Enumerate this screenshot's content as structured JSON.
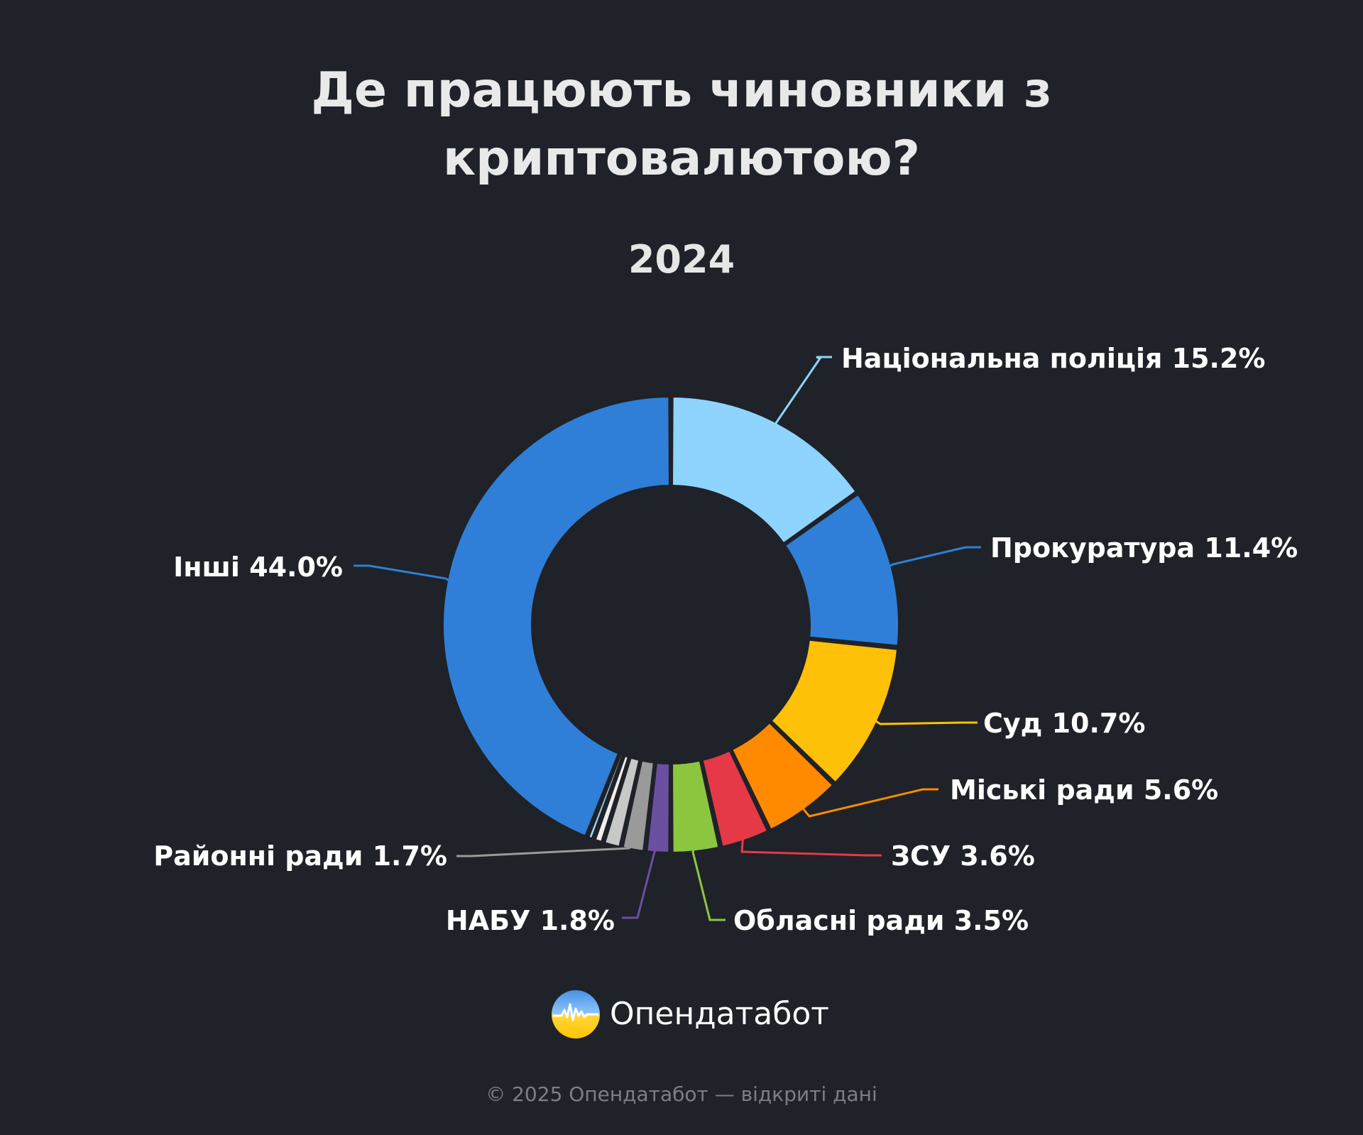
{
  "header": {
    "title_line1": "Де працюють чиновники з",
    "title_line2": "криптовалютою?",
    "subtitle": "2024"
  },
  "chart_data": {
    "type": "pie",
    "title": "Де працюють чиновники з криптовалютою?",
    "subtitle": "2024",
    "unit": "%",
    "slices": [
      {
        "label": "Національна поліція",
        "value": 15.2,
        "color": "#8fd3ff"
      },
      {
        "label": "Прокуратура",
        "value": 11.4,
        "color": "#2f7fd8"
      },
      {
        "label": "Суд",
        "value": 10.7,
        "color": "#ffc107"
      },
      {
        "label": "Міські ради",
        "value": 5.6,
        "color": "#ff8a00"
      },
      {
        "label": "ЗСУ",
        "value": 3.6,
        "color": "#e53948"
      },
      {
        "label": "Обласні ради",
        "value": 3.5,
        "color": "#8cc63f"
      },
      {
        "label": "НАБУ",
        "value": 1.8,
        "color": "#6b4fa0"
      },
      {
        "label": "Районні ради",
        "value": 1.7,
        "color": "#9a9a9a"
      },
      {
        "label": "",
        "value": 1.3,
        "color": "#c8c8c8"
      },
      {
        "label": "",
        "value": 0.7,
        "color": "#eeeeee"
      },
      {
        "label": "",
        "value": 0.5,
        "color": "#9ad8ff"
      },
      {
        "label": "Інші",
        "value": 44.0,
        "color": "#2f7fd8"
      }
    ]
  },
  "brand": {
    "logo_text": "Опендатабот"
  },
  "footer": {
    "text": "© 2025 Опендатабот — відкриті дані"
  }
}
